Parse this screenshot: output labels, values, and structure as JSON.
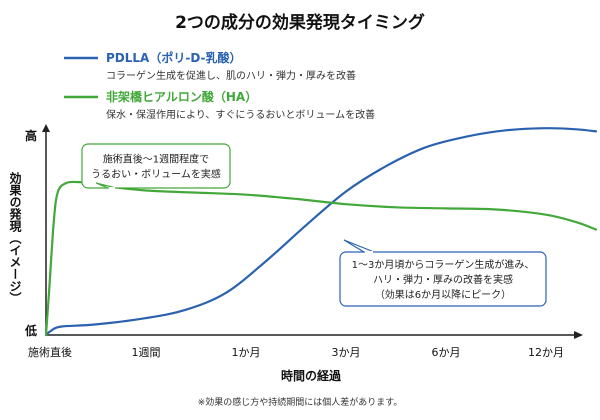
{
  "chart_data": {
    "type": "line",
    "title": "2つの成分の効果発現タイミング",
    "xlabel": "時間の経過",
    "ylabel": "効果の発現（イメージ）",
    "y_high_label": "高",
    "y_low_label": "低",
    "categories": [
      "施術直後",
      "1週間",
      "1か月",
      "3か月",
      "6か月",
      "12か月"
    ],
    "ylim": [
      0,
      100
    ],
    "grid": false,
    "legend_position": "top-left",
    "series": [
      {
        "name": "PDLLA（ポリ-D-乳酸）",
        "description": "コラーゲン生成を促進し、肌のハリ・弾力・厚みを改善",
        "color": "#2b62b0",
        "points": [
          [
            0.0,
            0
          ],
          [
            0.05,
            2
          ],
          [
            0.15,
            4
          ],
          [
            0.5,
            5
          ],
          [
            1.0,
            8
          ],
          [
            1.4,
            12
          ],
          [
            1.8,
            20
          ],
          [
            2.2,
            35
          ],
          [
            2.6,
            52
          ],
          [
            3.0,
            68
          ],
          [
            3.4,
            80
          ],
          [
            3.8,
            89
          ],
          [
            4.2,
            94
          ],
          [
            4.6,
            97
          ],
          [
            5.0,
            98
          ],
          [
            5.3,
            97.5
          ],
          [
            5.5,
            96.5
          ]
        ]
      },
      {
        "name": "非架橋ヒアルロン酸（HA）",
        "description": "保水・保湿作用により、すぐにうるおいとボリュームを改善",
        "color": "#43a83a",
        "points": [
          [
            0.0,
            0
          ],
          [
            0.03,
            20
          ],
          [
            0.08,
            55
          ],
          [
            0.12,
            68
          ],
          [
            0.2,
            72
          ],
          [
            0.3,
            72.5
          ],
          [
            0.45,
            72
          ],
          [
            0.6,
            70.5
          ],
          [
            1.0,
            68.5
          ],
          [
            1.5,
            67.5
          ],
          [
            2.0,
            66.5
          ],
          [
            2.5,
            64.5
          ],
          [
            3.0,
            62
          ],
          [
            3.5,
            60.5
          ],
          [
            4.0,
            60
          ],
          [
            4.5,
            59.5
          ],
          [
            5.0,
            57
          ],
          [
            5.3,
            53.5
          ],
          [
            5.5,
            50
          ]
        ]
      }
    ],
    "annotations": [
      {
        "series": 1,
        "text_lines": [
          "施術直後〜1週間程度で",
          "うるおい・ボリュームを実感"
        ]
      },
      {
        "series": 0,
        "text_lines": [
          "1〜3か月頃からコラーゲン生成が進み、",
          "ハリ・弾力・厚みの改善を実感",
          "（効果は6か月以降にピーク）"
        ]
      }
    ],
    "footnote": "※効果の感じ方や持続期間には個人差があります。"
  }
}
